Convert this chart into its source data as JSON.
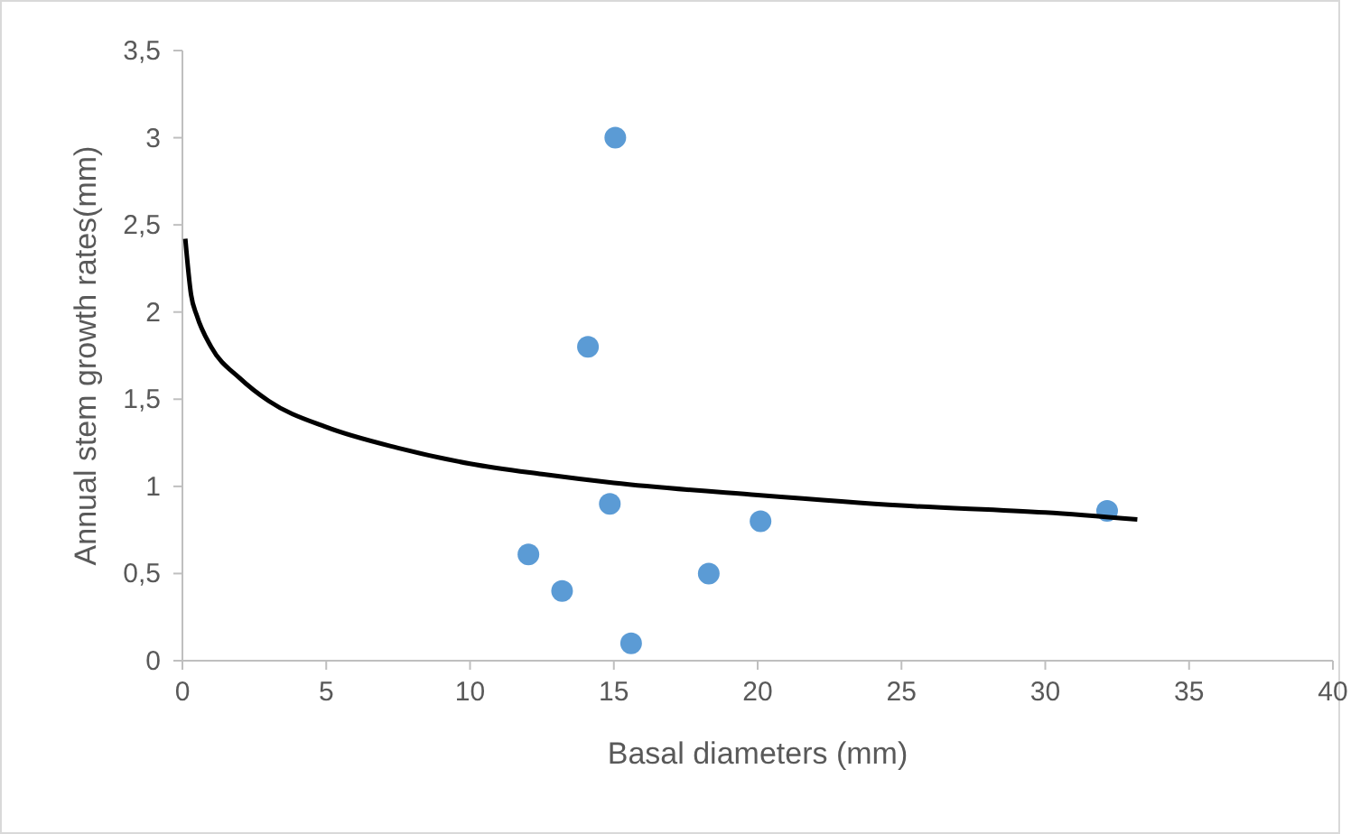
{
  "chart_data": {
    "type": "scatter",
    "xlabel": "Basal diameters (mm)",
    "ylabel": "Annual stem growth rates(mm)",
    "xlim": [
      0,
      40
    ],
    "xticks": [
      0,
      5,
      10,
      15,
      20,
      25,
      30,
      35,
      40
    ],
    "ylim": [
      0,
      3.5
    ],
    "yticks": [
      0,
      {
        "value": 0.5,
        "label": "0,5"
      },
      1,
      {
        "value": 1.5,
        "label": "1,5"
      },
      2,
      {
        "value": 2.5,
        "label": "2,5"
      },
      3,
      {
        "value": 3.5,
        "label": "3,5"
      }
    ],
    "grid": false,
    "marker": "circle",
    "series": [
      {
        "type": "scatter",
        "color": "#5b9bd5",
        "x": [
          15.05,
          14.1,
          14.86,
          12.03,
          13.2,
          15.6,
          18.3,
          20.1,
          32.15
        ],
        "values": [
          3.0,
          1.8,
          0.9,
          0.61,
          0.4,
          0.1,
          0.5,
          0.8,
          0.86
        ]
      },
      {
        "type": "line",
        "color": "#000000",
        "marker": "none",
        "x": [
          0.1,
          0.3,
          0.5,
          1,
          2,
          3,
          5,
          7.5,
          10,
          12.5,
          15,
          20,
          25,
          30,
          33.2
        ],
        "values": [
          2.42,
          2.1,
          1.98,
          1.8,
          1.62,
          1.49,
          1.34,
          1.22,
          1.13,
          1.07,
          1.02,
          0.95,
          0.89,
          0.85,
          0.81
        ]
      }
    ]
  }
}
